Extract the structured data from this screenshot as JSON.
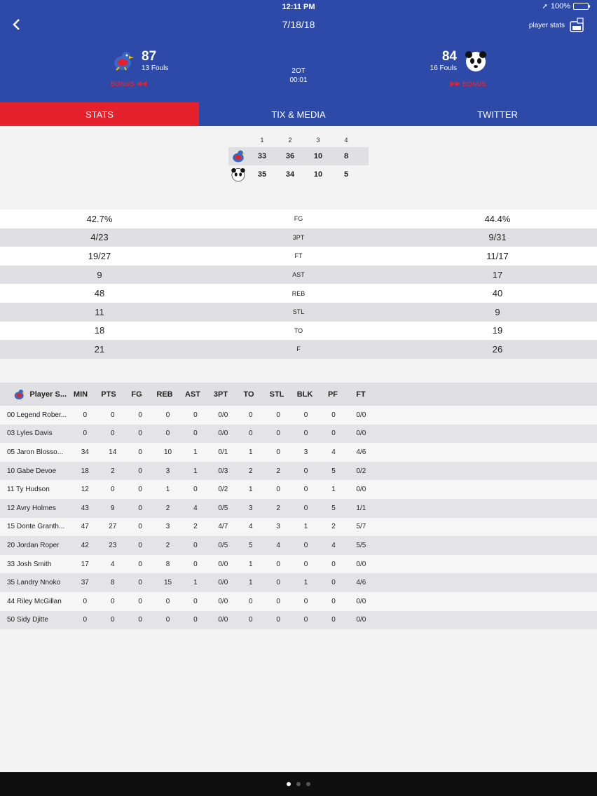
{
  "status_bar": {
    "time": "12:11 PM",
    "battery": "100%"
  },
  "header": {
    "date": "7/18/18",
    "player_stats_label": "player stats",
    "home": {
      "score": "87",
      "fouls": "13 Fouls",
      "bonus": "BONUS"
    },
    "away": {
      "score": "84",
      "fouls": "16 Fouls",
      "bonus": "BONUS"
    },
    "period": "2OT",
    "clock": "00:01"
  },
  "tabs": [
    {
      "label": "STATS",
      "active": true
    },
    {
      "label": "TIX & MEDIA",
      "active": false
    },
    {
      "label": "TWITTER",
      "active": false
    }
  ],
  "period_scores": {
    "headers": [
      "1",
      "2",
      "3",
      "4"
    ],
    "home": [
      "33",
      "36",
      "10",
      "8"
    ],
    "away": [
      "35",
      "34",
      "10",
      "5"
    ]
  },
  "team_stats": [
    {
      "label": "FG",
      "home": "42.7%",
      "away": "44.4%"
    },
    {
      "label": "3PT",
      "home": "4/23",
      "away": "9/31"
    },
    {
      "label": "FT",
      "home": "19/27",
      "away": "11/17"
    },
    {
      "label": "AST",
      "home": "9",
      "away": "17"
    },
    {
      "label": "REB",
      "home": "48",
      "away": "40"
    },
    {
      "label": "STL",
      "home": "11",
      "away": "9"
    },
    {
      "label": "TO",
      "home": "18",
      "away": "19"
    },
    {
      "label": "F",
      "home": "21",
      "away": "26"
    }
  ],
  "player_table": {
    "title": "Player S...",
    "columns": [
      "MIN",
      "PTS",
      "FG",
      "REB",
      "AST",
      "3PT",
      "TO",
      "STL",
      "BLK",
      "PF",
      "FT"
    ],
    "rows": [
      [
        "00 Legend Rober...",
        "0",
        "0",
        "0",
        "0",
        "0",
        "0/0",
        "0",
        "0",
        "0",
        "0",
        "0/0"
      ],
      [
        "03 Lyles Davis",
        "0",
        "0",
        "0",
        "0",
        "0",
        "0/0",
        "0",
        "0",
        "0",
        "0",
        "0/0"
      ],
      [
        "05 Jaron Blosso...",
        "34",
        "14",
        "0",
        "10",
        "1",
        "0/1",
        "1",
        "0",
        "3",
        "4",
        "4/6"
      ],
      [
        "10 Gabe Devoe",
        "18",
        "2",
        "0",
        "3",
        "1",
        "0/3",
        "2",
        "2",
        "0",
        "5",
        "0/2"
      ],
      [
        "11 Ty Hudson",
        "12",
        "0",
        "0",
        "1",
        "0",
        "0/2",
        "1",
        "0",
        "0",
        "1",
        "0/0"
      ],
      [
        "12 Avry Holmes",
        "43",
        "9",
        "0",
        "2",
        "4",
        "0/5",
        "3",
        "2",
        "0",
        "5",
        "1/1"
      ],
      [
        "15 Donte Granth...",
        "47",
        "27",
        "0",
        "3",
        "2",
        "4/7",
        "4",
        "3",
        "1",
        "2",
        "5/7"
      ],
      [
        "20 Jordan Roper",
        "42",
        "23",
        "0",
        "2",
        "0",
        "0/5",
        "5",
        "4",
        "0",
        "4",
        "5/5"
      ],
      [
        "33 Josh Smith",
        "17",
        "4",
        "0",
        "8",
        "0",
        "0/0",
        "1",
        "0",
        "0",
        "0",
        "0/0"
      ],
      [
        "35 Landry Nnoko",
        "37",
        "8",
        "0",
        "15",
        "1",
        "0/0",
        "1",
        "0",
        "1",
        "0",
        "4/6"
      ],
      [
        "44 Riley McGillan",
        "0",
        "0",
        "0",
        "0",
        "0",
        "0/0",
        "0",
        "0",
        "0",
        "0",
        "0/0"
      ],
      [
        "50 Sidy Djitte",
        "0",
        "0",
        "0",
        "0",
        "0",
        "0/0",
        "0",
        "0",
        "0",
        "0",
        "0/0"
      ]
    ]
  },
  "colors": {
    "header_blue": "#2d4aa8",
    "accent_red": "#e5222b"
  }
}
